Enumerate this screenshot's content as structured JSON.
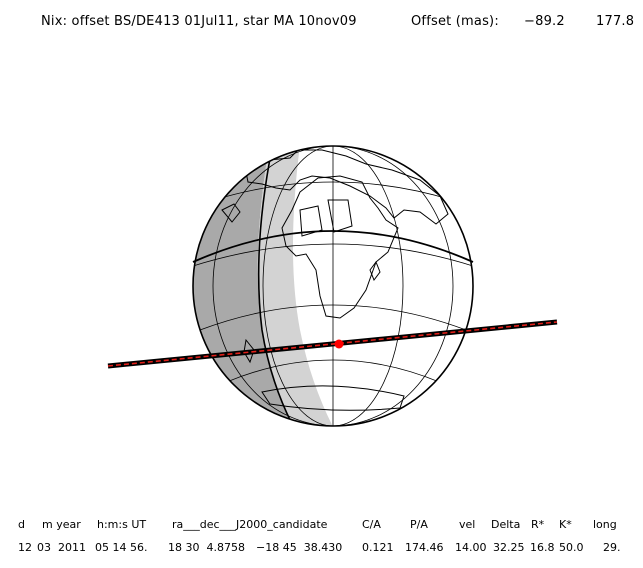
{
  "header": {
    "title": "Nix: offset BS/DE413 01Jul11, star MA 10nov09",
    "offset_label": "Offset (mas):",
    "offset_x": "−89.2",
    "offset_y": "177.8"
  },
  "map": {
    "projection": "orthographic",
    "center_lon_deg": 15,
    "center_lat_deg": 15,
    "track_color": "#e0201a",
    "event_point_color": "#ff0000",
    "night_shade_color": "#a9a9a9",
    "twilight_shade_color": "#d3d3d3"
  },
  "table": {
    "headers": {
      "d": "d",
      "m_year": "m year",
      "hms": "h:m:s UT",
      "radec": "ra___dec___J2000_candidate",
      "ca": "C/A",
      "pa": "P/A",
      "vel": "vel",
      "delta": "Delta",
      "rstar": "R*",
      "kstar": "K*",
      "long": "long"
    },
    "values": {
      "d": "12",
      "m": "03",
      "year": "2011",
      "hms": "05 14 56.",
      "ra": "18 30  4.8758",
      "dec": "−18 45  38.430",
      "ca": "0.121",
      "pa": "174.46",
      "vel": "14.00",
      "delta": "32.25",
      "rstar": "16.8",
      "kstar": "50.0",
      "long": "29."
    }
  }
}
